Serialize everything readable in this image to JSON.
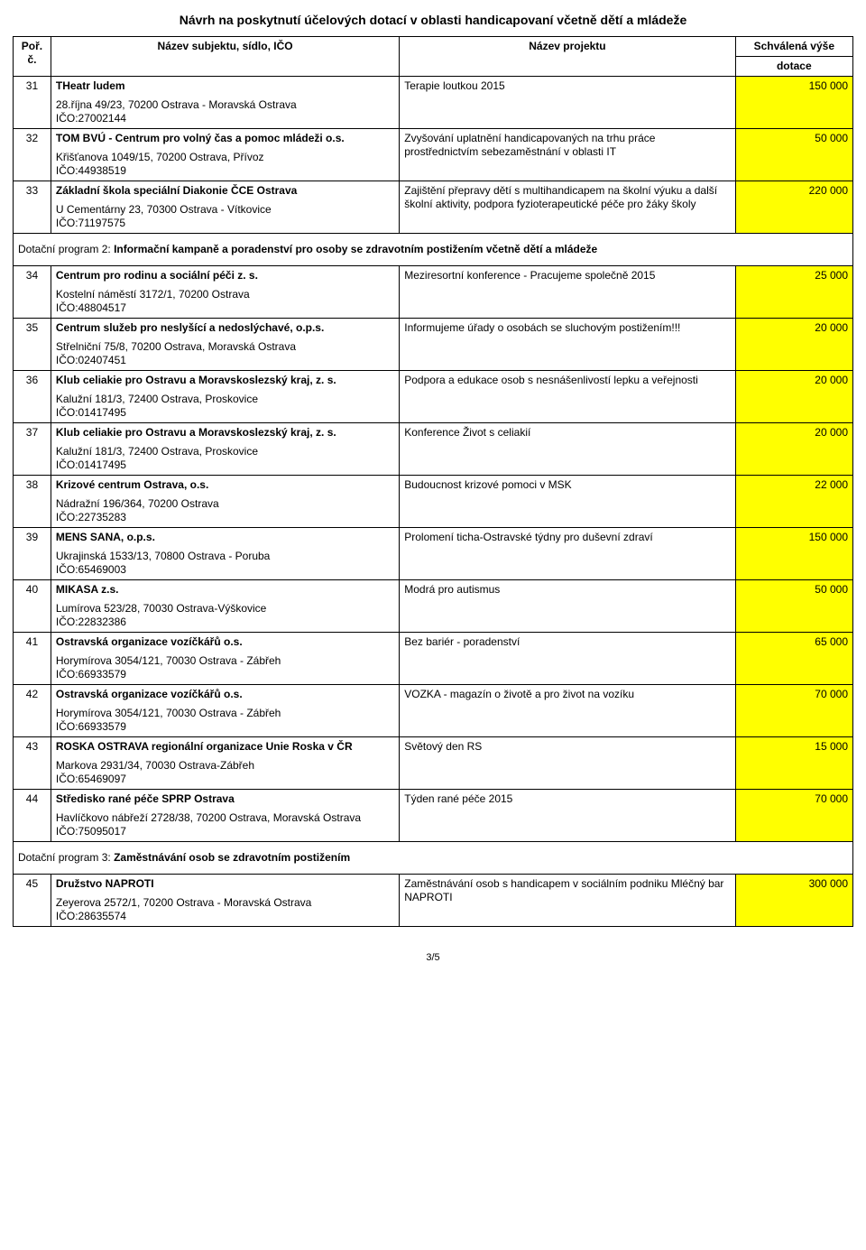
{
  "doc_title": "Návrh na poskytnutí účelových dotací v oblasti handicapovaní včetně dětí a mládeže",
  "headers": {
    "num": "Poř. č.",
    "subj": "Název subjektu, sídlo, IČO",
    "proj": "Název projektu",
    "amt1": "Schválená výše",
    "amt2": "dotace"
  },
  "rows": [
    {
      "num": "31",
      "title": "THeatr ludem",
      "addr": "28.října 49/23, 70200 Ostrava - Moravská Ostrava",
      "ico": "IČO:27002144",
      "proj": "Terapie loutkou 2015",
      "amt": "150 000"
    },
    {
      "num": "32",
      "title": "TOM BVÚ - Centrum pro volný čas a pomoc mládeži o.s.",
      "addr": "Křišťanova 1049/15, 70200 Ostrava, Přívoz",
      "ico": "IČO:44938519",
      "proj": "Zvyšování uplatnění handicapovaných na trhu práce prostřednictvím sebezaměstnání v oblasti IT",
      "amt": "50 000"
    },
    {
      "num": "33",
      "title": "Základní škola speciální Diakonie ČCE Ostrava",
      "addr": "U Cementárny 23, 70300 Ostrava - Vítkovice",
      "ico": "IČO:71197575",
      "proj": "Zajištění přepravy dětí s multihandicapem na školní výuku a další školní aktivity, podpora fyzioterapeutické péče pro žáky školy",
      "amt": "220 000"
    }
  ],
  "section2": {
    "prefix": "Dotační program 2: ",
    "bold": "Informační kampaně a poradenství pro osoby se zdravotním postižením včetně dětí a mládeže"
  },
  "rows2": [
    {
      "num": "34",
      "title": "Centrum pro rodinu a sociální péči z. s.",
      "addr": "Kostelní náměstí 3172/1, 70200 Ostrava",
      "ico": "IČO:48804517",
      "proj": "Meziresortní konference - Pracujeme společně 2015",
      "amt": "25 000"
    },
    {
      "num": "35",
      "title": "Centrum služeb pro neslyšící a nedoslýchavé, o.p.s.",
      "addr": "Střelniční 75/8, 70200 Ostrava, Moravská Ostrava",
      "ico": "IČO:02407451",
      "proj": "Informujeme úřady o osobách se sluchovým postižením!!!",
      "amt": "20 000"
    },
    {
      "num": "36",
      "title": "Klub celiakie pro Ostravu a Moravskoslezský kraj, z. s.",
      "addr": "Kalužní 181/3, 72400 Ostrava, Proskovice",
      "ico": "IČO:01417495",
      "proj": "Podpora a edukace osob s nesnášenlivostí lepku a veřejnosti",
      "amt": "20 000"
    },
    {
      "num": "37",
      "title": "Klub celiakie pro Ostravu a Moravskoslezský kraj, z. s.",
      "addr": "Kalužní 181/3, 72400 Ostrava, Proskovice",
      "ico": "IČO:01417495",
      "proj": "Konference Život s celiakií",
      "amt": "20 000"
    },
    {
      "num": "38",
      "title": "Krizové centrum Ostrava, o.s.",
      "addr": "Nádražní 196/364, 70200 Ostrava",
      "ico": "IČO:22735283",
      "proj": "Budoucnost krizové pomoci v MSK",
      "amt": "22 000"
    },
    {
      "num": "39",
      "title": "MENS SANA, o.p.s.",
      "addr": "Ukrajinská 1533/13, 70800 Ostrava - Poruba",
      "ico": "IČO:65469003",
      "proj": "Prolomení ticha-Ostravské týdny pro duševní zdraví",
      "amt": "150 000"
    },
    {
      "num": "40",
      "title": "MIKASA z.s.",
      "addr": "Lumírova 523/28, 70030 Ostrava-Výškovice",
      "ico": "IČO:22832386",
      "proj": "Modrá pro autismus",
      "amt": "50 000"
    },
    {
      "num": "41",
      "title": "Ostravská organizace vozíčkářů o.s.",
      "addr": "Horymírova 3054/121, 70030 Ostrava - Zábřeh",
      "ico": "IČO:66933579",
      "proj": "Bez bariér - poradenství",
      "amt": "65 000"
    },
    {
      "num": "42",
      "title": "Ostravská organizace vozíčkářů o.s.",
      "addr": "Horymírova 3054/121, 70030 Ostrava - Zábřeh",
      "ico": "IČO:66933579",
      "proj": "VOZKA - magazín o životě a pro život na vozíku",
      "amt": "70 000"
    },
    {
      "num": "43",
      "title": "ROSKA OSTRAVA regionální organizace Unie Roska v ČR",
      "addr": "Markova 2931/34, 70030 Ostrava-Zábřeh",
      "ico": "IČO:65469097",
      "proj": "Světový den RS",
      "amt": "15 000"
    },
    {
      "num": "44",
      "title": "Středisko rané péče SPRP Ostrava",
      "addr": "Havlíčkovo nábřeží 2728/38, 70200 Ostrava, Moravská Ostrava",
      "ico": "IČO:75095017",
      "proj": "Týden rané péče 2015",
      "amt": "70 000"
    }
  ],
  "section3": {
    "prefix": "Dotační program 3: ",
    "bold": "Zaměstnávání osob se zdravotním postižením"
  },
  "rows3": [
    {
      "num": "45",
      "title": "Družstvo NAPROTI",
      "addr": "Zeyerova 2572/1, 70200 Ostrava - Moravská Ostrava",
      "ico": "IČO:28635574",
      "proj": "Zaměstnávání osob s handicapem v sociálním podniku Mléčný bar NAPROTI",
      "amt": "300 000"
    }
  ],
  "footer": "3/5",
  "colors": {
    "highlight": "#ffff00",
    "border": "#000000",
    "background": "#ffffff",
    "text": "#000000"
  }
}
